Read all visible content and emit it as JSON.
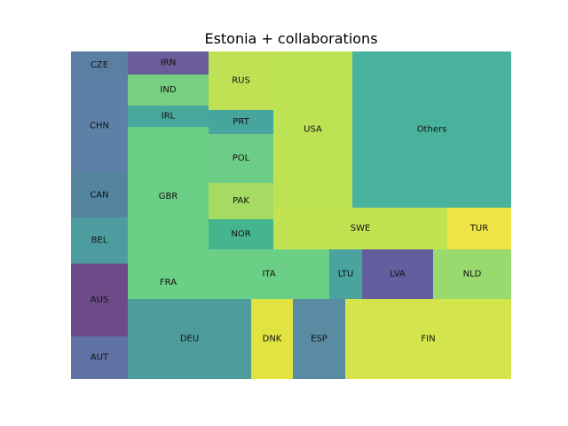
{
  "chart_data": {
    "type": "treemap",
    "title": "Estonia + collaborations",
    "tiles": [
      {
        "label": "CZE",
        "value": 1.9,
        "color": "#5a7fa3"
      },
      {
        "label": "CHN",
        "value": 6.9,
        "color": "#5c80a6"
      },
      {
        "label": "CAN",
        "value": 3.3,
        "color": "#54859f"
      },
      {
        "label": "BEL",
        "value": 3.4,
        "color": "#4d9c9f"
      },
      {
        "label": "AUS",
        "value": 5.4,
        "color": "#6e4a88"
      },
      {
        "label": "AUT",
        "value": 3.1,
        "color": "#5f72a3"
      },
      {
        "label": "IRN",
        "value": 2.3,
        "color": "#6b5c9b"
      },
      {
        "label": "IND",
        "value": 3.2,
        "color": "#77d081"
      },
      {
        "label": "IRL",
        "value": 2.1,
        "color": "#48a79c"
      },
      {
        "label": "GBR",
        "value": 14.2,
        "color": "#6ccf86"
      },
      {
        "label": "FRA",
        "value": 3.4,
        "color": "#6ccf86"
      },
      {
        "label": "DEU",
        "value": 10.9,
        "color": "#4d9b9b"
      },
      {
        "label": "RUS",
        "value": 6.0,
        "color": "#bfe255"
      },
      {
        "label": "PRT",
        "value": 2.1,
        "color": "#46a69d"
      },
      {
        "label": "POL",
        "value": 4.2,
        "color": "#6dcd86"
      },
      {
        "label": "PAK",
        "value": 3.2,
        "color": "#a5db63"
      },
      {
        "label": "NOR",
        "value": 2.6,
        "color": "#45b590"
      },
      {
        "label": "USA",
        "value": 11.3,
        "color": "#bde355"
      },
      {
        "label": "Others",
        "value": 24.1,
        "color": "#49b29d"
      },
      {
        "label": "SWE",
        "value": 8.4,
        "color": "#c2e351"
      },
      {
        "label": "TUR",
        "value": 3.1,
        "color": "#f0e345"
      },
      {
        "label": "ITA",
        "value": 6.6,
        "color": "#6ccf86"
      },
      {
        "label": "LTU",
        "value": 1.8,
        "color": "#4aa39e"
      },
      {
        "label": "LVA",
        "value": 3.8,
        "color": "#635f9e"
      },
      {
        "label": "NLD",
        "value": 4.4,
        "color": "#98da70"
      },
      {
        "label": "DNK",
        "value": 4.3,
        "color": "#e0e340"
      },
      {
        "label": "ESP",
        "value": 5.4,
        "color": "#5a8ba3"
      },
      {
        "label": "FIN",
        "value": 16.9,
        "color": "#d4e54b"
      }
    ]
  }
}
